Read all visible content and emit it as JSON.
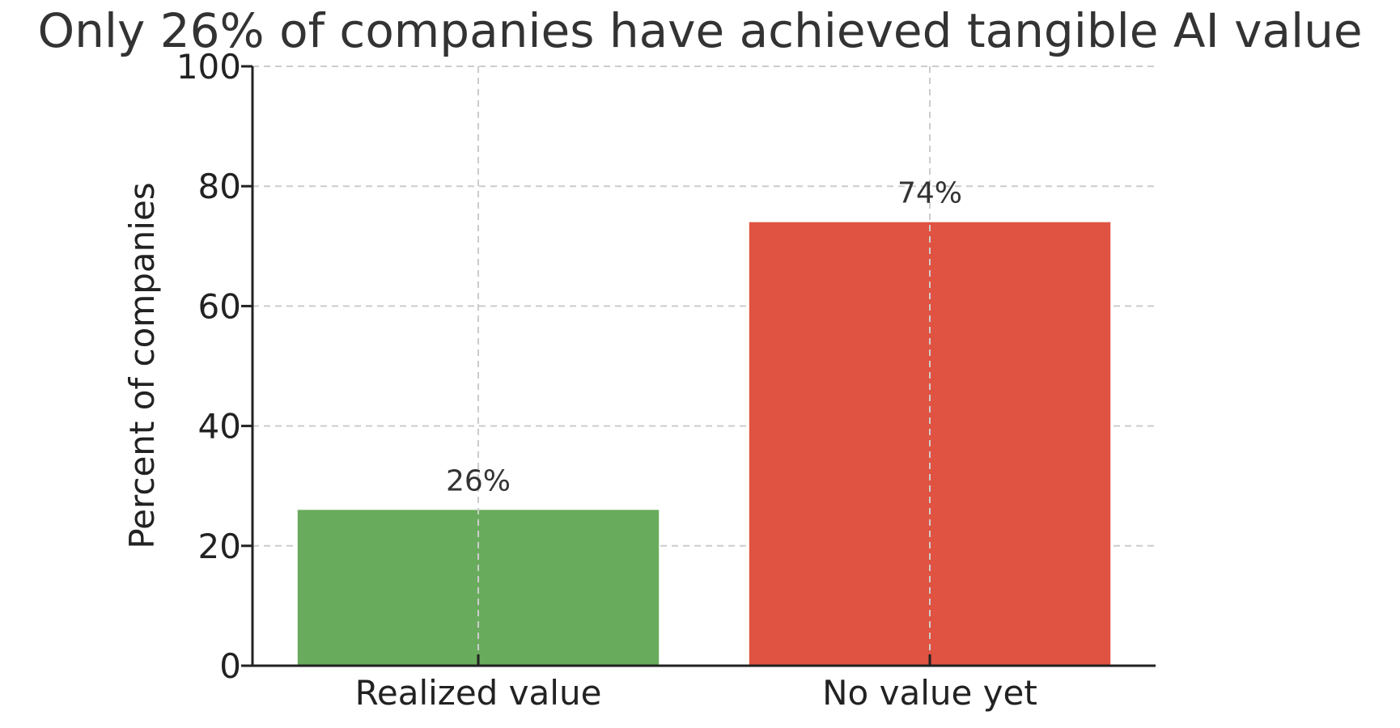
{
  "chart_data": {
    "type": "bar",
    "title": "Only 26% of companies have achieved tangible AI value",
    "xlabel": "",
    "ylabel": "Percent of companies",
    "categories": [
      "Realized value",
      "No value yet"
    ],
    "values": [
      26,
      74
    ],
    "data_labels": [
      "26%",
      "74%"
    ],
    "colors": [
      "#69ab5c",
      "#e05241"
    ],
    "ylim": [
      0,
      100
    ],
    "yticks": [
      0,
      20,
      40,
      60,
      80,
      100
    ],
    "grid": true,
    "legend": "none"
  }
}
